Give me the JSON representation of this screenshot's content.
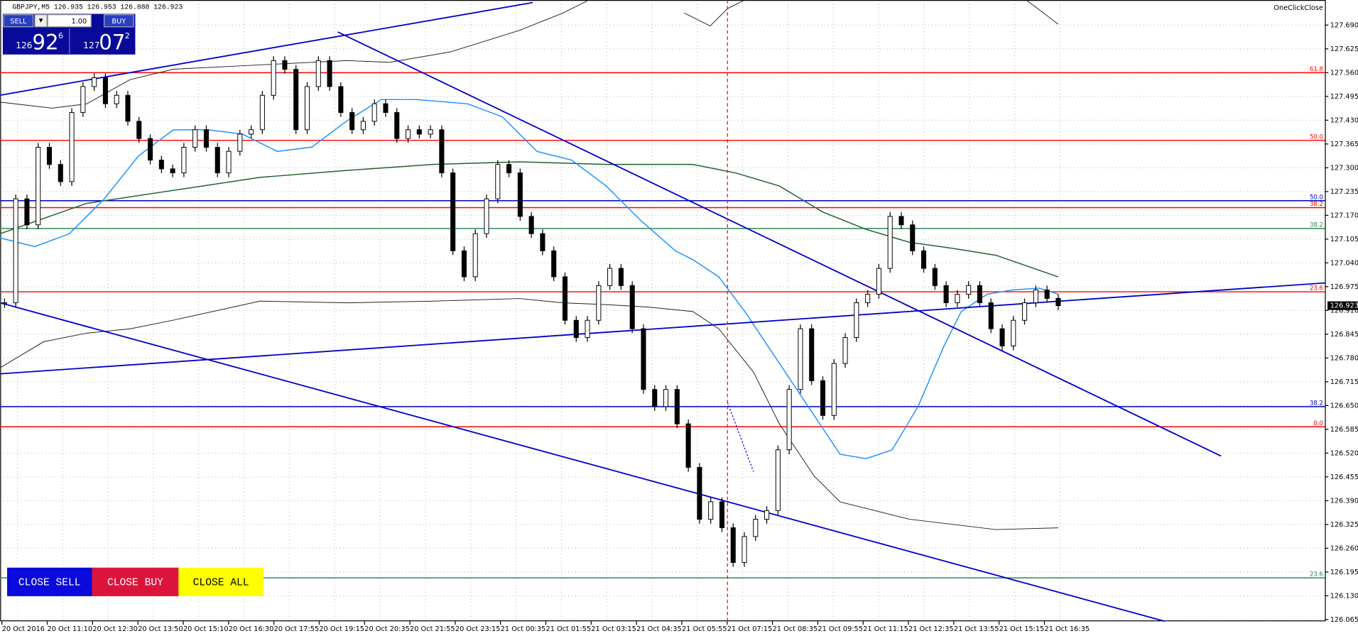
{
  "header": {
    "symbol_info": "GBPJPY,M5  126.935 126.953 126.888 126.923",
    "plugin": "OneClickClose"
  },
  "trade_panel": {
    "sell": "SELL",
    "buy": "BUY",
    "lot": "1.00",
    "bid": {
      "big": "126",
      "main": "92",
      "small": "6"
    },
    "ask": {
      "big": "127",
      "main": "07",
      "small": "2"
    }
  },
  "buttons": [
    "CLOSE SELL",
    "CLOSE BUY",
    "CLOSE ALL"
  ],
  "price_axis": {
    "labels": [
      "127.690",
      "127.625",
      "127.560",
      "127.495",
      "127.430",
      "127.365",
      "127.300",
      "127.235",
      "127.170",
      "127.105",
      "127.040",
      "126.975",
      "126.910",
      "126.845",
      "126.780",
      "126.715",
      "126.650",
      "126.585",
      "126.520",
      "126.455",
      "126.390",
      "126.325",
      "126.260",
      "126.195",
      "126.130",
      "126.065"
    ],
    "current": "126.923"
  },
  "time_axis": {
    "labels": [
      "20 Oct 2016",
      "20 Oct 11:10",
      "20 Oct 12:30",
      "20 Oct 13:50",
      "20 Oct 15:10",
      "20 Oct 16:30",
      "20 Oct 17:55",
      "20 Oct 19:15",
      "20 Oct 20:35",
      "20 Oct 21:55",
      "20 Oct 23:15",
      "21 Oct 00:35",
      "21 Oct 01:55",
      "21 Oct 03:15",
      "21 Oct 04:35",
      "21 Oct 05:55",
      "21 Oct 07:15",
      "21 Oct 08:35",
      "21 Oct 09:55",
      "21 Oct 11:15",
      "21 Oct 12:35",
      "21 Oct 13:55",
      "21 Oct 15:15",
      "21 Oct 16:35"
    ]
  },
  "levels": [
    {
      "label": "61.8",
      "price": 127.56,
      "color": "#ff0000"
    },
    {
      "label": "50.0",
      "price": 127.375,
      "color": "#ff0000"
    },
    {
      "label": "50.0",
      "price": 127.21,
      "color": "#0000cd"
    },
    {
      "label": "38.2",
      "price": 127.191,
      "color": "#ff0000"
    },
    {
      "label": "38.2",
      "price": 127.134,
      "color": "#2e8b57"
    },
    {
      "label": "23.6",
      "price": 126.961,
      "color": "#ff0000"
    },
    {
      "label": "38.2",
      "price": 126.647,
      "color": "#0000cd"
    },
    {
      "label": "0.0",
      "price": 126.592,
      "color": "#ff0000"
    },
    {
      "label": "23.6",
      "price": 126.179,
      "color": "#2e8b57"
    }
  ],
  "price_path": [
    126.931,
    127.215,
    127.144,
    127.356,
    127.309,
    127.262,
    127.451,
    127.522,
    127.546,
    127.475,
    127.498,
    127.427,
    127.38,
    127.321,
    127.297,
    127.286,
    127.356,
    127.404,
    127.356,
    127.286,
    127.345,
    127.392,
    127.404,
    127.498,
    127.593,
    127.569,
    127.404,
    127.522,
    127.593,
    127.522,
    127.451,
    127.404,
    127.427,
    127.475,
    127.451,
    127.38,
    127.404,
    127.392,
    127.404,
    127.286,
    127.073,
    127.002,
    127.12,
    127.215,
    127.309,
    127.286,
    127.167,
    127.12,
    127.073,
    127.002,
    126.883,
    126.836,
    126.883,
    126.978,
    127.025,
    126.978,
    126.86,
    126.694,
    126.647,
    126.694,
    126.6,
    126.481,
    126.339,
    126.387,
    126.316,
    126.221,
    126.292,
    126.339,
    126.363,
    126.529,
    126.694,
    126.86,
    126.718,
    126.623,
    126.765,
    126.836,
    126.931,
    126.954,
    127.025,
    127.167,
    127.144,
    127.073,
    127.025,
    126.978,
    126.931,
    126.954,
    126.978,
    126.931,
    126.86,
    126.813,
    126.883,
    126.931,
    126.966,
    126.943,
    126.923
  ]
}
